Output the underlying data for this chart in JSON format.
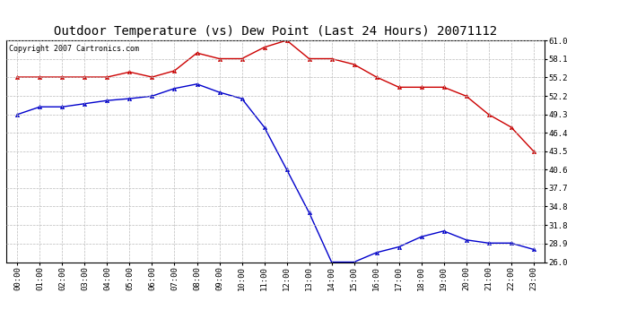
{
  "title": "Outdoor Temperature (vs) Dew Point (Last 24 Hours) 20071112",
  "copyright_text": "Copyright 2007 Cartronics.com",
  "x_labels": [
    "00:00",
    "01:00",
    "02:00",
    "03:00",
    "04:00",
    "05:00",
    "06:00",
    "07:00",
    "08:00",
    "09:00",
    "10:00",
    "11:00",
    "12:00",
    "13:00",
    "14:00",
    "15:00",
    "16:00",
    "17:00",
    "18:00",
    "19:00",
    "20:00",
    "21:00",
    "22:00",
    "23:00"
  ],
  "temp_data": [
    55.2,
    55.2,
    55.2,
    55.2,
    55.2,
    56.0,
    55.2,
    56.2,
    59.0,
    58.1,
    58.1,
    59.9,
    61.0,
    58.1,
    58.1,
    57.2,
    55.2,
    53.6,
    53.6,
    53.6,
    52.2,
    49.3,
    47.3,
    43.5
  ],
  "dew_data": [
    49.3,
    50.5,
    50.5,
    51.0,
    51.5,
    51.8,
    52.2,
    53.4,
    54.1,
    52.8,
    51.8,
    47.3,
    40.6,
    33.8,
    26.0,
    26.0,
    27.5,
    28.4,
    30.0,
    30.9,
    29.5,
    29.0,
    29.0,
    28.0
  ],
  "temp_color": "#cc0000",
  "dew_color": "#0000cc",
  "bg_color": "#ffffff",
  "plot_bg_color": "#ffffff",
  "grid_color": "#bbbbbb",
  "yticks": [
    26.0,
    28.9,
    31.8,
    34.8,
    37.7,
    40.6,
    43.5,
    46.4,
    49.3,
    52.2,
    55.2,
    58.1,
    61.0
  ],
  "ymin": 26.0,
  "ymax": 61.0,
  "title_fontsize": 10,
  "tick_fontsize": 6.5,
  "copyright_fontsize": 6
}
